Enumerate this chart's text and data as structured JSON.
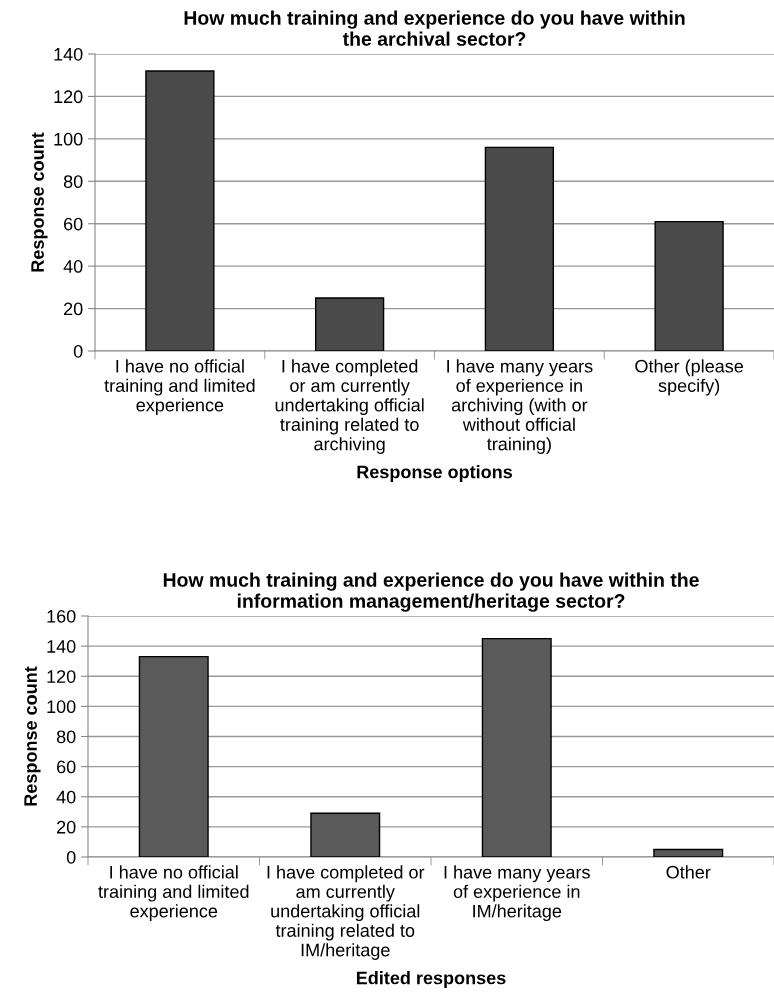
{
  "chart_data": [
    {
      "type": "bar",
      "title": "How much training and experience do you have within\nthe archival sector?",
      "xlabel": "Response options",
      "ylabel": "Response count",
      "categories": [
        "I have no official\ntraining and limited\nexperience",
        "I have completed\nor am currently\nundertaking official\ntraining related to\narchiving",
        "I have many years\nof experience in\narchiving (with or\nwithout official\ntraining)",
        "Other (please\nspecify)"
      ],
      "values": [
        132,
        25,
        96,
        61
      ],
      "color": "#4a4a4a",
      "ylim": [
        0,
        140
      ],
      "yticks": [
        0,
        20,
        40,
        60,
        80,
        100,
        120,
        140
      ],
      "grid": "y"
    },
    {
      "type": "bar",
      "title": "How much training and experience do you have within the\ninformation management/heritage sector?",
      "xlabel": "Edited responses",
      "ylabel": "Response count",
      "categories": [
        "I have no official\ntraining and limited\nexperience",
        "I have completed or\nam currently\nundertaking official\ntraining related to\nIM/heritage",
        "I have many years\nof experience in\nIM/heritage",
        "Other"
      ],
      "values": [
        133,
        29,
        145,
        5
      ],
      "color": "#5a5a5a",
      "ylim": [
        0,
        160
      ],
      "yticks": [
        0,
        20,
        40,
        60,
        80,
        100,
        120,
        140,
        160
      ],
      "grid": "y"
    }
  ]
}
